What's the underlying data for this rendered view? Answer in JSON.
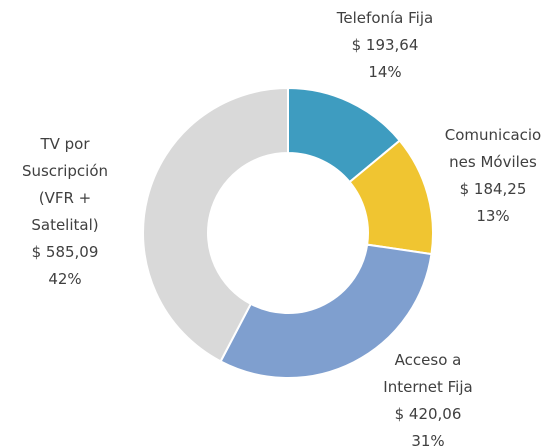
{
  "chart_data": {
    "type": "donut",
    "categories": [
      "Telefonía Fija",
      "Comunicaciones Móviles",
      "Acceso a Internet Fija",
      "TV por Suscripción (VFR + Satelital)"
    ],
    "values": [
      193.64,
      184.25,
      420.06,
      585.09
    ],
    "value_labels": [
      "$ 193,64",
      "$ 184,25",
      "$ 420,06",
      "$ 585,09"
    ],
    "percentages": [
      14,
      13,
      31,
      42
    ],
    "percentage_labels": [
      "14%",
      "13%",
      "31%",
      "42%"
    ],
    "colors": [
      "#3e9cc0",
      "#f0c531",
      "#7f9fcf",
      "#d9d9d9"
    ]
  }
}
